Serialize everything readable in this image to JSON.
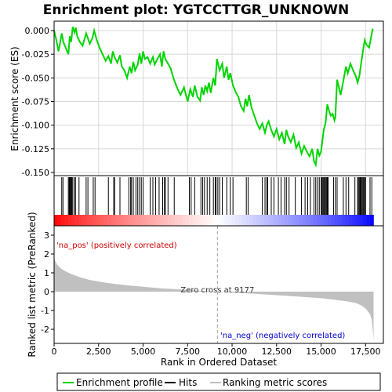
{
  "title": "Enrichment plot: YGTCCTTGR_UNKNOWN",
  "colors": {
    "es_line": "#00d400",
    "hits": "#000000",
    "metric_fill": "#c0c0c0",
    "pos_label": "#cc0000",
    "neg_label": "#0000cc",
    "zero_line": "#a0a0a0",
    "frame": "#000000"
  },
  "chart_data": {
    "type": "line",
    "panels": {
      "enrichment": {
        "ylabel": "Enrichment score (ES)",
        "ylim": [
          -0.15,
          0.0
        ],
        "yticks": [
          0.0,
          -0.025,
          -0.05,
          -0.075,
          -0.1,
          -0.125,
          -0.15
        ],
        "ytick_labels": [
          "0.000",
          "-0.025",
          "-0.050",
          "-0.075",
          "-0.100",
          "-0.125",
          "-0.150"
        ],
        "series": [
          {
            "x": [
              0,
              100,
              250,
              430,
              520,
              650,
              800,
              880,
              960,
              1050,
              1150,
              1220,
              1300,
              1450,
              1600,
              1800,
              1900,
              2000,
              2150,
              2250,
              2400,
              2550,
              2700,
              2900,
              3050,
              3200,
              3300,
              3400,
              3550,
              3700,
              3800,
              3950,
              4100,
              4250,
              4350,
              4450,
              4550,
              4700,
              4800,
              4900,
              5000,
              5100,
              5250,
              5400,
              5550,
              5650,
              5800,
              5950,
              6050,
              6150,
              6250,
              6400,
              6550,
              6700,
              6900,
              7100,
              7300,
              7500,
              7650,
              7800,
              7900,
              8050,
              8200,
              8300,
              8400,
              8500,
              8600,
              8700,
              8800,
              8950,
              9050,
              9150,
              9300,
              9450,
              9550,
              9700,
              9800,
              9900,
              10050,
              10200,
              10350,
              10500,
              10650,
              10750,
              10850,
              10950,
              11100,
              11250,
              11400,
              11550,
              11700,
              11850,
              11950,
              12050,
              12200,
              12350,
              12500,
              12650,
              12800,
              12950,
              13050,
              13150,
              13300,
              13450,
              13600,
              13750,
              13900,
              14050,
              14200,
              14350,
              14500,
              14600,
              14700,
              14800,
              14900,
              15000,
              15050,
              15150,
              15250,
              15350,
              15450,
              15550,
              15650,
              15750,
              15800,
              15900,
              16000,
              16100,
              16200,
              16300,
              16400,
              16500,
              16650,
              16800,
              16950,
              17050,
              17150,
              17250,
              17350,
              17450,
              17550,
              17700,
              17800,
              17900
            ],
            "y": [
              0.0,
              -0.008,
              -0.022,
              -0.003,
              -0.012,
              -0.018,
              -0.025,
              -0.006,
              -0.012,
              0.004,
              -0.002,
              0.003,
              -0.006,
              -0.012,
              -0.016,
              -0.003,
              -0.008,
              -0.014,
              -0.008,
              0.0,
              -0.01,
              -0.018,
              -0.024,
              -0.032,
              -0.027,
              -0.035,
              -0.022,
              -0.028,
              -0.034,
              -0.026,
              -0.038,
              -0.042,
              -0.05,
              -0.038,
              -0.045,
              -0.033,
              -0.042,
              -0.036,
              -0.024,
              -0.035,
              -0.022,
              -0.03,
              -0.028,
              -0.035,
              -0.028,
              -0.036,
              -0.03,
              -0.025,
              -0.038,
              -0.022,
              -0.03,
              -0.035,
              -0.04,
              -0.05,
              -0.06,
              -0.068,
              -0.06,
              -0.075,
              -0.062,
              -0.07,
              -0.058,
              -0.07,
              -0.074,
              -0.06,
              -0.068,
              -0.058,
              -0.064,
              -0.055,
              -0.066,
              -0.05,
              -0.058,
              -0.03,
              -0.042,
              -0.035,
              -0.05,
              -0.038,
              -0.052,
              -0.045,
              -0.058,
              -0.065,
              -0.07,
              -0.08,
              -0.085,
              -0.072,
              -0.08,
              -0.068,
              -0.082,
              -0.09,
              -0.098,
              -0.104,
              -0.098,
              -0.108,
              -0.1,
              -0.096,
              -0.105,
              -0.112,
              -0.104,
              -0.115,
              -0.108,
              -0.12,
              -0.105,
              -0.112,
              -0.118,
              -0.11,
              -0.124,
              -0.118,
              -0.13,
              -0.122,
              -0.128,
              -0.133,
              -0.125,
              -0.138,
              -0.142,
              -0.125,
              -0.132,
              -0.128,
              -0.12,
              -0.105,
              -0.098,
              -0.078,
              -0.085,
              -0.09,
              -0.088,
              -0.095,
              -0.092,
              -0.052,
              -0.06,
              -0.068,
              -0.058,
              -0.048,
              -0.038,
              -0.045,
              -0.035,
              -0.042,
              -0.048,
              -0.055,
              -0.048,
              -0.035,
              -0.022,
              -0.01,
              -0.015,
              -0.018,
              -0.008,
              0.002
            ]
          }
        ]
      },
      "hits": {
        "x": [
          430,
          500,
          800,
          850,
          880,
          930,
          960,
          1000,
          1050,
          1150,
          1200,
          1400,
          1800,
          1900,
          2200,
          2300,
          3050,
          3350,
          3400,
          3700,
          4200,
          4300,
          4350,
          4450,
          4600,
          4700,
          4800,
          4900,
          5000,
          5400,
          5550,
          5700,
          5900,
          6100,
          6200,
          6250,
          6400,
          6750,
          7600,
          7700,
          7900,
          8250,
          8350,
          8450,
          8600,
          8750,
          8950,
          9050,
          9100,
          9200,
          9300,
          9450,
          9700,
          9900,
          10050,
          10800,
          10900,
          11700,
          11850,
          11950,
          12000,
          12200,
          12350,
          12600,
          12750,
          12950,
          13050,
          13200,
          13550,
          13900,
          14100,
          14250,
          14400,
          14600,
          14700,
          14800,
          14900,
          15000,
          15050,
          15100,
          15150,
          15200,
          15250,
          15300,
          15350,
          15400,
          15700,
          15800,
          15900,
          16250,
          16400,
          16550,
          16900,
          17050,
          17100,
          17150,
          17200,
          17250,
          17300,
          17350,
          17400,
          17450,
          17500,
          17750,
          17850
        ]
      },
      "metric": {
        "ylabel": "Ranked list metric (PreRanked)",
        "ylim": [
          -2.75,
          3.5
        ],
        "yticks": [
          3,
          2,
          1,
          0,
          -1,
          -2
        ],
        "ytick_labels": [
          "3",
          "2",
          "1",
          "0",
          "-1",
          "-2"
        ],
        "x": [
          0,
          30,
          100,
          200,
          400,
          700,
          1000,
          1500,
          2000,
          3000,
          4000,
          5000,
          6000,
          7000,
          8000,
          9177,
          10000,
          11000,
          12000,
          13000,
          14000,
          15000,
          15500,
          16000,
          16500,
          17000,
          17300,
          17550,
          17750,
          17850,
          17900,
          17950
        ],
        "y": [
          1.9,
          1.7,
          1.55,
          1.4,
          1.22,
          1.05,
          0.92,
          0.75,
          0.62,
          0.46,
          0.35,
          0.26,
          0.18,
          0.12,
          0.06,
          0.0,
          -0.05,
          -0.1,
          -0.16,
          -0.22,
          -0.28,
          -0.35,
          -0.4,
          -0.46,
          -0.52,
          -0.62,
          -0.75,
          -0.95,
          -1.2,
          -1.5,
          -2.0,
          -2.6
        ]
      }
    },
    "xlabel": "Rank in Ordered Dataset",
    "xlim": [
      0,
      18500
    ],
    "xticks": [
      0,
      2500,
      5000,
      7500,
      10000,
      12500,
      15000,
      17500
    ],
    "xtick_labels": [
      "0",
      "2,500",
      "5,000",
      "7,500",
      "10,000",
      "12,500",
      "15,000",
      "17,500"
    ],
    "zero_cross_rank": 9177,
    "max_rank": 17950,
    "annotations": {
      "zero_cross": "Zero cross at 9177",
      "pos": "'na_pos' (positively correlated)",
      "neg": "'na_neg' (negatively correlated)"
    },
    "legend": {
      "position": "bottom",
      "items": [
        "Enrichment profile",
        "Hits",
        "Ranking metric scores"
      ]
    }
  }
}
